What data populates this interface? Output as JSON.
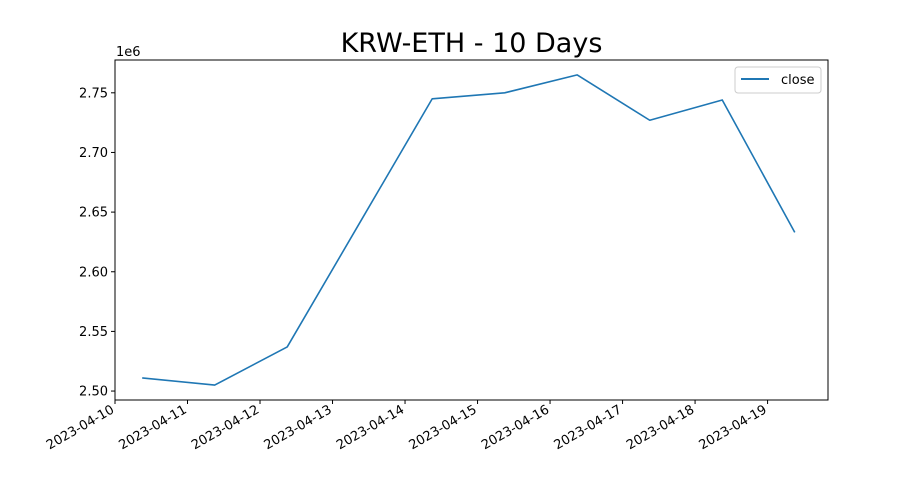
{
  "chart_data": {
    "type": "line",
    "title": "KRW-ETH - 10 Days",
    "xlabel": "",
    "ylabel": "",
    "y_offset_label": "1e6",
    "x_tick_labels": [
      "2023-04-10",
      "2023-04-11",
      "2023-04-12",
      "2023-04-13",
      "2023-04-14",
      "2023-04-15",
      "2023-04-16",
      "2023-04-17",
      "2023-04-18",
      "2023-04-19"
    ],
    "y_ticks": [
      2.5,
      2.55,
      2.6,
      2.65,
      2.7,
      2.75
    ],
    "y_tick_labels": [
      "2.50",
      "2.55",
      "2.60",
      "2.65",
      "2.70",
      "2.75"
    ],
    "xlim": [
      "2023-04-10T00:00",
      "2023-04-19T20:00"
    ],
    "ylim": [
      2.4925,
      2.7775
    ],
    "legend": {
      "position": "top-right",
      "entries": [
        "close"
      ]
    },
    "grid": false,
    "series": [
      {
        "name": "close",
        "color": "#1f77b4",
        "x": [
          "2023-04-10T09:00",
          "2023-04-11T09:00",
          "2023-04-12T09:00",
          "2023-04-13T09:00",
          "2023-04-14T09:00",
          "2023-04-15T09:00",
          "2023-04-16T09:00",
          "2023-04-17T09:00",
          "2023-04-18T09:00",
          "2023-04-19T09:00"
        ],
        "values": [
          2.511,
          2.505,
          2.537,
          2.641,
          2.745,
          2.75,
          2.765,
          2.727,
          2.744,
          2.633
        ]
      }
    ]
  }
}
